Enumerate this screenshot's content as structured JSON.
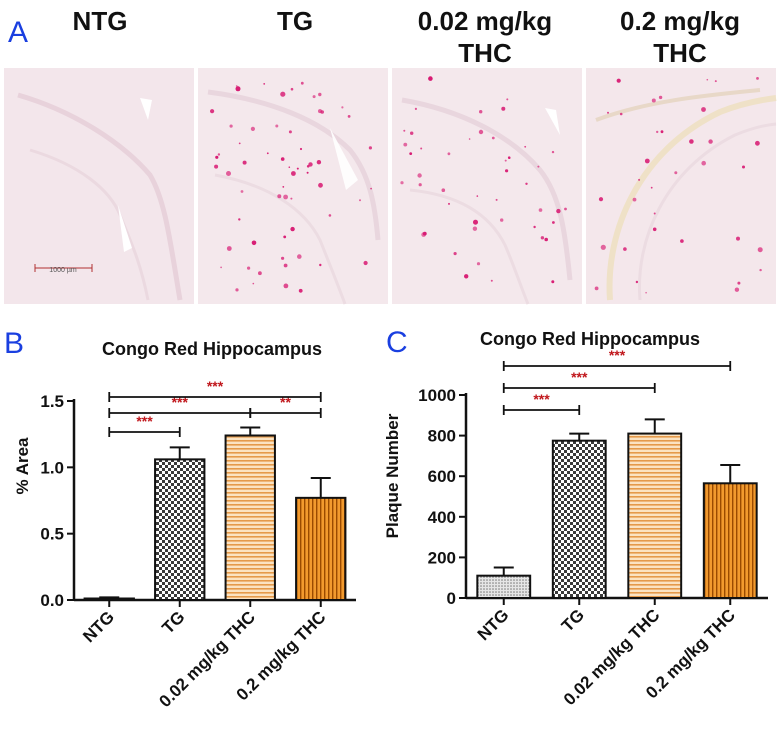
{
  "panels": {
    "a": {
      "letter": "A",
      "micrographs": [
        {
          "label_lines": [
            "NTG"
          ],
          "scale_bar": "1000 µm"
        },
        {
          "label_lines": [
            "TG"
          ]
        },
        {
          "label_lines": [
            "0.02 mg/kg",
            "THC"
          ]
        },
        {
          "label_lines": [
            "0.2 mg/kg",
            "THC"
          ]
        }
      ]
    },
    "b": {
      "letter": "B"
    },
    "c": {
      "letter": "C"
    }
  },
  "colors": {
    "panel_letter": "#1a3fe0",
    "tissue": "#f4e7ec",
    "plaque": "#d81b73",
    "orange_light": "#f5bf7a",
    "orange_dark": "#f08a12",
    "significance": "#c0161b"
  },
  "chart_data": [
    {
      "id": "B",
      "type": "bar",
      "title": "Congo Red Hippocampus",
      "xlabel": "",
      "ylabel": "% Area",
      "ylim": [
        0,
        1.5
      ],
      "yticks": [
        "0.0",
        "0.5",
        "1.0",
        "1.5"
      ],
      "categories": [
        "NTG",
        "TG",
        "0.02 mg/kg THC",
        "0.2 mg/kg THC"
      ],
      "values": [
        0.01,
        1.06,
        1.24,
        0.77
      ],
      "errors": [
        0.01,
        0.09,
        0.06,
        0.15
      ],
      "fills": [
        "white",
        "checker",
        "hlines-light-orange",
        "vlines-orange"
      ],
      "significance": [
        {
          "from": 0,
          "to": 1,
          "label": "***"
        },
        {
          "from": 0,
          "to": 2,
          "label": "***"
        },
        {
          "from": 2,
          "to": 3,
          "label": "**"
        },
        {
          "from": 0,
          "to": 3,
          "label": "***"
        }
      ]
    },
    {
      "id": "C",
      "type": "bar",
      "title": "Congo Red Hippocampus",
      "xlabel": "",
      "ylabel": "Plaque Number",
      "ylim": [
        0,
        1000
      ],
      "yticks": [
        "0",
        "200",
        "400",
        "600",
        "800",
        "1000"
      ],
      "categories": [
        "NTG",
        "TG",
        "0.02 mg/kg THC",
        "0.2 mg/kg THC"
      ],
      "values": [
        110,
        775,
        810,
        565
      ],
      "errors": [
        40,
        35,
        70,
        90
      ],
      "fills": [
        "dots",
        "checker",
        "hlines-light-orange",
        "vlines-orange"
      ],
      "significance": [
        {
          "from": 0,
          "to": 1,
          "label": "***"
        },
        {
          "from": 0,
          "to": 2,
          "label": "***"
        },
        {
          "from": 0,
          "to": 3,
          "label": "***"
        }
      ]
    }
  ]
}
